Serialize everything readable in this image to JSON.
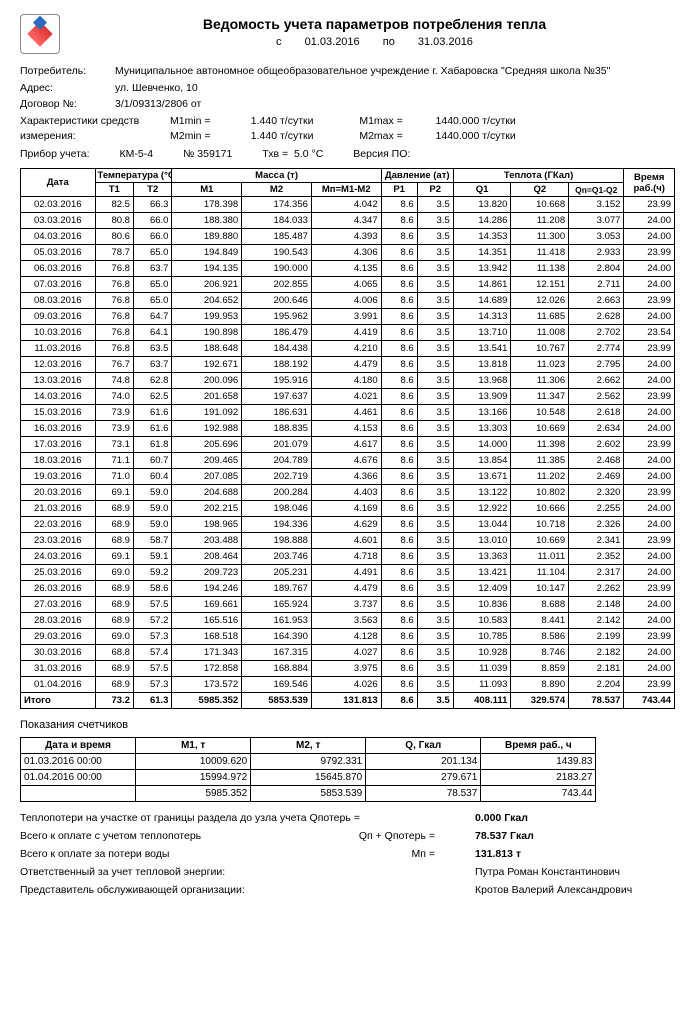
{
  "title": "Ведомость учета параметров потребления тепла",
  "period": {
    "from_label": "с",
    "from": "01.03.2016",
    "to_label": "по",
    "to": "31.03.2016"
  },
  "consumer": {
    "label": "Потребитель:",
    "name": "Муниципальное автономное общеобразовательное учреждение г. Хабаровска \"Средняя школа №35\""
  },
  "address": {
    "label": "Адрес:",
    "value": "ул. Шевченко, 10"
  },
  "contract": {
    "label": "Договор №:",
    "value": "3/1/09313/2806  от"
  },
  "char": {
    "label": "Характеристики средств измерения:",
    "m1min_label": "M1min =",
    "m1min": "1.440 т/сутки",
    "m2min_label": "M2min =",
    "m2min": "1.440 т/сутки",
    "m1max_label": "M1max =",
    "m1max": "1440.000 т/сутки",
    "m2max_label": "M2max =",
    "m2max": "1440.000 т/сутки"
  },
  "device": {
    "label": "Прибор учета:",
    "model": "КМ-5-4",
    "num_label": "№ 359171",
    "txv_label": "Тхв =",
    "txv": "5.0  °C",
    "ver_label": "Версия ПО:"
  },
  "cols": {
    "date": "Дата",
    "temp": "Температура (°C)",
    "mass": "Масса (т)",
    "press": "Давление (ат)",
    "heat": "Теплота (ГКал)",
    "time": "Время раб.(ч)",
    "t1": "T1",
    "t2": "T2",
    "m1": "M1",
    "m2": "M2",
    "mn": "Мп=М1-М2",
    "p1": "P1",
    "p2": "P2",
    "q1": "Q1",
    "q2": "Q2",
    "qn": "Qп=Q1-Q2"
  },
  "rows": [
    [
      "02.03.2016",
      "82.5",
      "66.3",
      "178.398",
      "174.356",
      "4.042",
      "8.6",
      "3.5",
      "13.820",
      "10.668",
      "3.152",
      "23.99"
    ],
    [
      "03.03.2016",
      "80.8",
      "66.0",
      "188.380",
      "184.033",
      "4.347",
      "8.6",
      "3.5",
      "14.286",
      "11.208",
      "3.077",
      "24.00"
    ],
    [
      "04.03.2016",
      "80.6",
      "66.0",
      "189.880",
      "185.487",
      "4.393",
      "8.6",
      "3.5",
      "14.353",
      "11.300",
      "3.053",
      "24.00"
    ],
    [
      "05.03.2016",
      "78.7",
      "65.0",
      "194.849",
      "190.543",
      "4.306",
      "8.6",
      "3.5",
      "14.351",
      "11.418",
      "2.933",
      "23.99"
    ],
    [
      "06.03.2016",
      "76.8",
      "63.7",
      "194.135",
      "190.000",
      "4.135",
      "8.6",
      "3.5",
      "13.942",
      "11.138",
      "2.804",
      "24.00"
    ],
    [
      "07.03.2016",
      "76.8",
      "65.0",
      "206.921",
      "202.855",
      "4.065",
      "8.6",
      "3.5",
      "14.861",
      "12.151",
      "2.711",
      "24.00"
    ],
    [
      "08.03.2016",
      "76.8",
      "65.0",
      "204.652",
      "200.646",
      "4.006",
      "8.6",
      "3.5",
      "14.689",
      "12.026",
      "2.663",
      "23.99"
    ],
    [
      "09.03.2016",
      "76.8",
      "64.7",
      "199.953",
      "195.962",
      "3.991",
      "8.6",
      "3.5",
      "14.313",
      "11.685",
      "2.628",
      "24.00"
    ],
    [
      "10.03.2016",
      "76.8",
      "64.1",
      "190.898",
      "186.479",
      "4.419",
      "8.6",
      "3.5",
      "13.710",
      "11.008",
      "2.702",
      "23.54"
    ],
    [
      "11.03.2016",
      "76.8",
      "63.5",
      "188.648",
      "184.438",
      "4.210",
      "8.6",
      "3.5",
      "13.541",
      "10.767",
      "2.774",
      "23.99"
    ],
    [
      "12.03.2016",
      "76.7",
      "63.7",
      "192.671",
      "188.192",
      "4.479",
      "8.6",
      "3.5",
      "13.818",
      "11.023",
      "2.795",
      "24.00"
    ],
    [
      "13.03.2016",
      "74.8",
      "62.8",
      "200.096",
      "195.916",
      "4.180",
      "8.6",
      "3.5",
      "13.968",
      "11.306",
      "2.662",
      "24.00"
    ],
    [
      "14.03.2016",
      "74.0",
      "62.5",
      "201.658",
      "197.637",
      "4.021",
      "8.6",
      "3.5",
      "13.909",
      "11.347",
      "2.562",
      "23.99"
    ],
    [
      "15.03.2016",
      "73.9",
      "61.6",
      "191.092",
      "186.631",
      "4.461",
      "8.6",
      "3.5",
      "13.166",
      "10.548",
      "2.618",
      "24.00"
    ],
    [
      "16.03.2016",
      "73.9",
      "61.6",
      "192.988",
      "188.835",
      "4.153",
      "8.6",
      "3.5",
      "13.303",
      "10.669",
      "2.634",
      "24.00"
    ],
    [
      "17.03.2016",
      "73.1",
      "61.8",
      "205.696",
      "201.079",
      "4.617",
      "8.6",
      "3.5",
      "14.000",
      "11.398",
      "2.602",
      "23.99"
    ],
    [
      "18.03.2016",
      "71.1",
      "60.7",
      "209.465",
      "204.789",
      "4.676",
      "8.6",
      "3.5",
      "13.854",
      "11.385",
      "2.468",
      "24.00"
    ],
    [
      "19.03.2016",
      "71.0",
      "60.4",
      "207.085",
      "202.719",
      "4.366",
      "8.6",
      "3.5",
      "13.671",
      "11.202",
      "2.469",
      "24.00"
    ],
    [
      "20.03.2016",
      "69.1",
      "59.0",
      "204.688",
      "200.284",
      "4.403",
      "8.6",
      "3.5",
      "13.122",
      "10.802",
      "2.320",
      "23.99"
    ],
    [
      "21.03.2016",
      "68.9",
      "59.0",
      "202.215",
      "198.046",
      "4.169",
      "8.6",
      "3.5",
      "12.922",
      "10.666",
      "2.255",
      "24.00"
    ],
    [
      "22.03.2016",
      "68.9",
      "59.0",
      "198.965",
      "194.336",
      "4.629",
      "8.6",
      "3.5",
      "13.044",
      "10.718",
      "2.326",
      "24.00"
    ],
    [
      "23.03.2016",
      "68.9",
      "58.7",
      "203.488",
      "198.888",
      "4.601",
      "8.6",
      "3.5",
      "13.010",
      "10.669",
      "2.341",
      "23.99"
    ],
    [
      "24.03.2016",
      "69.1",
      "59.1",
      "208.464",
      "203.746",
      "4.718",
      "8.6",
      "3.5",
      "13.363",
      "11.011",
      "2.352",
      "24.00"
    ],
    [
      "25.03.2016",
      "69.0",
      "59.2",
      "209.723",
      "205.231",
      "4.491",
      "8.6",
      "3.5",
      "13.421",
      "11.104",
      "2.317",
      "24.00"
    ],
    [
      "26.03.2016",
      "68.9",
      "58.6",
      "194.246",
      "189.767",
      "4.479",
      "8.6",
      "3.5",
      "12.409",
      "10.147",
      "2.262",
      "23.99"
    ],
    [
      "27.03.2016",
      "68.9",
      "57.5",
      "169.661",
      "165.924",
      "3.737",
      "8.6",
      "3.5",
      "10.836",
      "8.688",
      "2.148",
      "24.00"
    ],
    [
      "28.03.2016",
      "68.9",
      "57.2",
      "165.516",
      "161.953",
      "3.563",
      "8.6",
      "3.5",
      "10.583",
      "8.441",
      "2.142",
      "24.00"
    ],
    [
      "29.03.2016",
      "69.0",
      "57.3",
      "168.518",
      "164.390",
      "4.128",
      "8.6",
      "3.5",
      "10.785",
      "8.586",
      "2.199",
      "23.99"
    ],
    [
      "30.03.2016",
      "68.8",
      "57.4",
      "171.343",
      "167.315",
      "4.027",
      "8.6",
      "3.5",
      "10.928",
      "8.746",
      "2.182",
      "24.00"
    ],
    [
      "31.03.2016",
      "68.9",
      "57.5",
      "172.858",
      "168.884",
      "3.975",
      "8.6",
      "3.5",
      "11.039",
      "8.859",
      "2.181",
      "24.00"
    ],
    [
      "01.04.2016",
      "68.9",
      "57.3",
      "173.572",
      "169.546",
      "4.026",
      "8.6",
      "3.5",
      "11.093",
      "8.890",
      "2.204",
      "23.99"
    ]
  ],
  "total": {
    "label": "Итого",
    "vals": [
      "73.2",
      "61.3",
      "5985.352",
      "5853.539",
      "131.813",
      "8.6",
      "3.5",
      "408.111",
      "329.574",
      "78.537",
      "743.44"
    ]
  },
  "readings": {
    "title": "Показания счетчиков",
    "cols": [
      "Дата и время",
      "M1, т",
      "M2, т",
      "Q, Гкал",
      "Время раб., ч"
    ],
    "rows": [
      [
        "01.03.2016  00:00",
        "10009.620",
        "9792.331",
        "201.134",
        "1439.83"
      ],
      [
        "01.04.2016  00:00",
        "15994.972",
        "15645.870",
        "279.671",
        "2183.27"
      ],
      [
        "",
        "5985.352",
        "5853.539",
        "78.537",
        "743.44"
      ]
    ]
  },
  "footer": {
    "heat_loss_label": "Теплопотери на участке от границы раздела до узла учета Qпотерь =",
    "heat_loss_val": "0.000 Гкал",
    "total_pay_label": "Всего к оплате с учетом теплопотерь",
    "total_pay_eq": "Qп + Qпотерь  =",
    "total_pay_val": "78.537 Гкал",
    "water_loss_label": "Всего к оплате за потери воды",
    "water_loss_eq": "Мп =",
    "water_loss_val": "131.813 т",
    "resp_label": "Ответственный за учет тепловой энергии:",
    "resp_name": "Путра Роман Константинович",
    "serv_label": "Представитель обслуживающей организации:",
    "serv_name": "Кротов Валерий Александрович"
  },
  "colwidths": [
    "62",
    "32",
    "32",
    "58",
    "58",
    "58",
    "30",
    "30",
    "48",
    "48",
    "46",
    "42"
  ]
}
